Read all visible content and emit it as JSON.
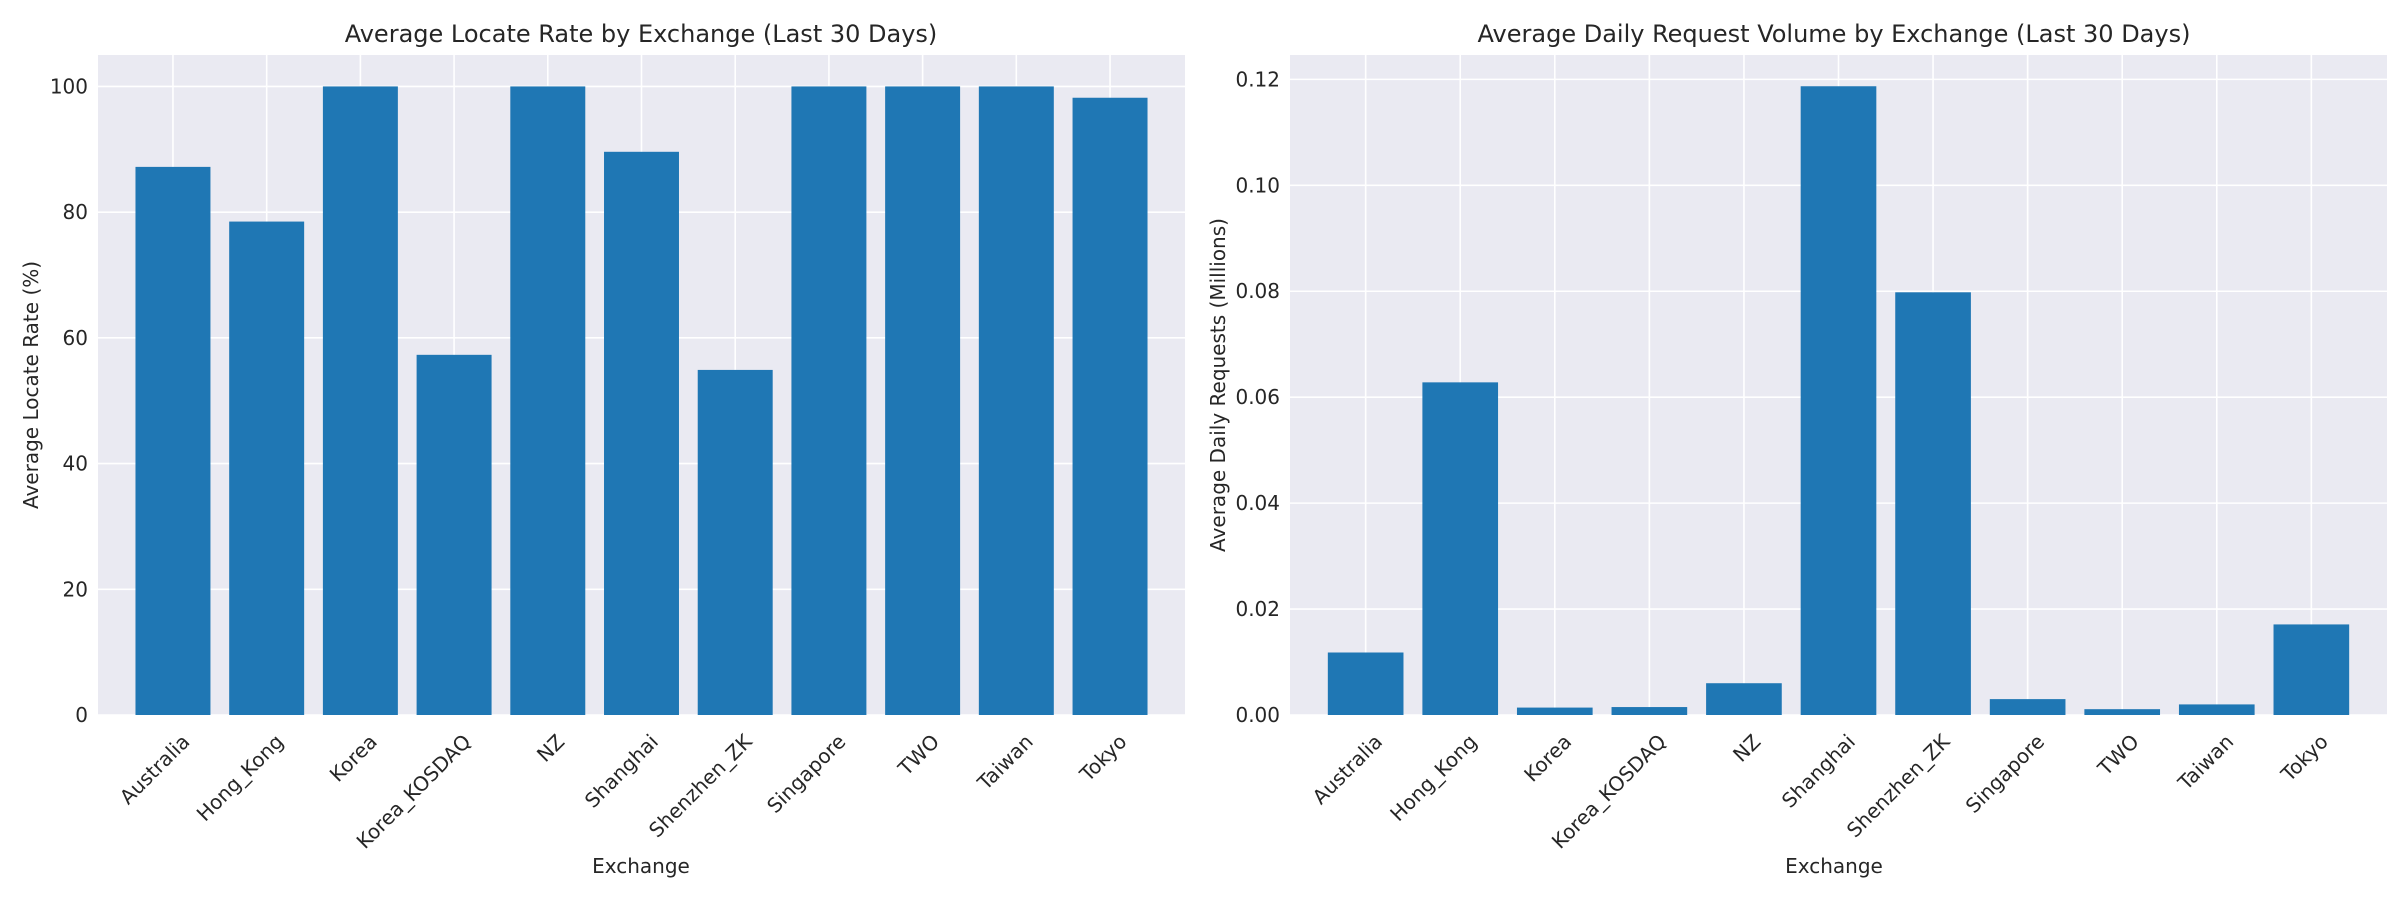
{
  "chart_data": [
    {
      "type": "bar",
      "title": "Average Locate Rate by Exchange (Last 30 Days)",
      "xlabel": "Exchange",
      "ylabel": "Average Locate Rate (%)",
      "categories": [
        "Australia",
        "Hong_Kong",
        "Korea",
        "Korea_KOSDAQ",
        "NZ",
        "Shanghai",
        "Shenzhen_ZK",
        "Singapore",
        "TWO",
        "Taiwan",
        "Tokyo"
      ],
      "values": [
        87.2,
        78.5,
        100,
        57.3,
        100,
        89.6,
        54.9,
        100,
        100,
        100,
        98.2
      ],
      "ylim": [
        0,
        105
      ],
      "yticks": [
        0,
        20,
        40,
        60,
        80,
        100
      ],
      "ytick_labels": [
        "0",
        "20",
        "40",
        "60",
        "80",
        "100"
      ],
      "grid": true,
      "color": "#1f77b4"
    },
    {
      "type": "bar",
      "title": "Average Daily Request Volume by Exchange (Last 30 Days)",
      "xlabel": "Exchange",
      "ylabel": "Average Daily Requests (Millions)",
      "categories": [
        "Australia",
        "Hong_Kong",
        "Korea",
        "Korea_KOSDAQ",
        "NZ",
        "Shanghai",
        "Shenzhen_ZK",
        "Singapore",
        "TWO",
        "Taiwan",
        "Tokyo"
      ],
      "values": [
        0.0118,
        0.0628,
        0.0014,
        0.0015,
        0.006,
        0.1187,
        0.0798,
        0.003,
        0.0011,
        0.002,
        0.0171
      ],
      "ylim": [
        0,
        0.1246
      ],
      "yticks": [
        0,
        0.02,
        0.04,
        0.06,
        0.08,
        0.1,
        0.12
      ],
      "ytick_labels": [
        "0.00",
        "0.02",
        "0.04",
        "0.06",
        "0.08",
        "0.10",
        "0.12"
      ],
      "grid": true,
      "color": "#1f77b4"
    }
  ]
}
